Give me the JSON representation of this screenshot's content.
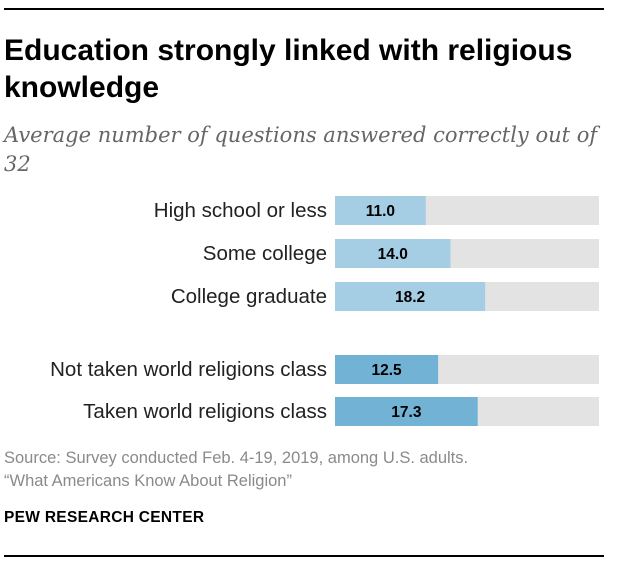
{
  "chart_data": {
    "type": "bar",
    "orientation": "horizontal",
    "title": "Education strongly linked with religious knowledge",
    "subtitle": "Average number of questions answered correctly out of 32",
    "xlim": [
      0,
      32
    ],
    "groups": [
      {
        "name": "education",
        "color": "#a5cde3",
        "categories": [
          "High school or less",
          "Some college",
          "College graduate"
        ],
        "values": [
          11.0,
          14.0,
          18.2
        ],
        "value_labels": [
          "11.0",
          "14.0",
          "18.2"
        ]
      },
      {
        "name": "world-religions-class",
        "color": "#72b2d5",
        "categories": [
          "Not taken world religions class",
          "Taken world religions class"
        ],
        "values": [
          12.5,
          17.3
        ],
        "value_labels": [
          "12.5",
          "17.3"
        ]
      }
    ],
    "background_bar_color": "#e3e3e3"
  },
  "footer": {
    "source_line1": "Source: Survey conducted Feb. 4-19, 2019, among U.S. adults.",
    "source_line2": "“What Americans Know About Religion”",
    "organization": "PEW RESEARCH CENTER"
  }
}
